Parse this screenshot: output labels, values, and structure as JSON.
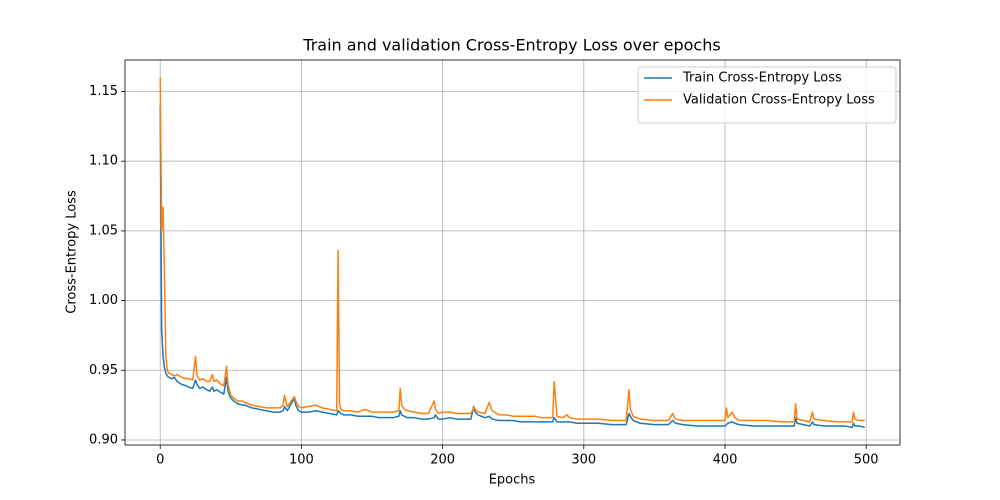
{
  "chart_data": {
    "type": "line",
    "title": "Train and validation Cross-Entropy Loss over epochs",
    "xlabel": "Epochs",
    "ylabel": "Cross-Entropy Loss",
    "x": [
      0,
      1,
      2,
      3,
      4,
      5,
      6,
      8,
      10,
      12,
      15,
      18,
      20,
      23,
      25,
      26,
      28,
      30,
      33,
      35,
      37,
      38,
      40,
      43,
      45,
      47,
      48,
      50,
      52,
      55,
      58,
      60,
      65,
      70,
      75,
      80,
      85,
      87,
      88,
      90,
      95,
      96,
      98,
      100,
      105,
      110,
      115,
      120,
      125,
      126,
      127,
      128,
      130,
      135,
      140,
      145,
      150,
      155,
      160,
      165,
      169,
      170,
      171,
      173,
      175,
      180,
      185,
      190,
      194,
      195,
      197,
      200,
      205,
      210,
      215,
      220,
      222,
      223,
      225,
      230,
      233,
      235,
      240,
      245,
      250,
      255,
      260,
      265,
      270,
      275,
      278,
      279,
      281,
      285,
      288,
      290,
      295,
      300,
      310,
      320,
      330,
      332,
      333,
      335,
      340,
      350,
      360,
      363,
      365,
      370,
      380,
      390,
      400,
      401,
      402,
      405,
      407,
      410,
      420,
      430,
      440,
      449,
      450,
      451,
      460,
      462,
      463,
      470,
      480,
      485,
      490,
      491,
      492,
      495,
      499
    ],
    "series": [
      {
        "name": "Train Cross-Entropy Loss",
        "color": "#1f77b4",
        "values": [
          1.14,
          0.98,
          0.96,
          0.952,
          0.948,
          0.946,
          0.945,
          0.944,
          0.945,
          0.942,
          0.94,
          0.939,
          0.938,
          0.937,
          0.943,
          0.94,
          0.937,
          0.938,
          0.936,
          0.935,
          0.938,
          0.935,
          0.936,
          0.934,
          0.933,
          0.945,
          0.935,
          0.93,
          0.928,
          0.926,
          0.925,
          0.925,
          0.923,
          0.922,
          0.921,
          0.92,
          0.92,
          0.921,
          0.924,
          0.921,
          0.93,
          0.925,
          0.921,
          0.92,
          0.92,
          0.921,
          0.92,
          0.919,
          0.918,
          0.921,
          0.92,
          0.919,
          0.918,
          0.918,
          0.917,
          0.917,
          0.917,
          0.916,
          0.916,
          0.916,
          0.917,
          0.921,
          0.918,
          0.917,
          0.916,
          0.916,
          0.915,
          0.915,
          0.916,
          0.918,
          0.915,
          0.915,
          0.916,
          0.915,
          0.915,
          0.915,
          0.924,
          0.92,
          0.918,
          0.916,
          0.917,
          0.915,
          0.914,
          0.914,
          0.914,
          0.913,
          0.913,
          0.913,
          0.913,
          0.913,
          0.913,
          0.916,
          0.913,
          0.913,
          0.913,
          0.913,
          0.912,
          0.912,
          0.912,
          0.911,
          0.911,
          0.919,
          0.917,
          0.914,
          0.912,
          0.911,
          0.911,
          0.914,
          0.912,
          0.911,
          0.91,
          0.91,
          0.91,
          0.911,
          0.912,
          0.913,
          0.912,
          0.911,
          0.91,
          0.91,
          0.91,
          0.91,
          0.916,
          0.912,
          0.91,
          0.913,
          0.911,
          0.91,
          0.91,
          0.91,
          0.909,
          0.912,
          0.91,
          0.91,
          0.909
        ]
      },
      {
        "name": "Validation Cross-Entropy Loss",
        "color": "#ff7f0e",
        "values": [
          1.16,
          1.05,
          1.067,
          1.02,
          0.96,
          0.95,
          0.948,
          0.947,
          0.946,
          0.947,
          0.945,
          0.944,
          0.944,
          0.943,
          0.96,
          0.946,
          0.943,
          0.944,
          0.942,
          0.942,
          0.947,
          0.942,
          0.943,
          0.94,
          0.939,
          0.953,
          0.94,
          0.932,
          0.93,
          0.928,
          0.928,
          0.927,
          0.925,
          0.924,
          0.923,
          0.923,
          0.923,
          0.925,
          0.932,
          0.924,
          0.931,
          0.928,
          0.924,
          0.923,
          0.924,
          0.925,
          0.923,
          0.922,
          0.921,
          1.036,
          0.926,
          0.922,
          0.921,
          0.921,
          0.92,
          0.922,
          0.92,
          0.92,
          0.92,
          0.92,
          0.921,
          0.937,
          0.925,
          0.922,
          0.921,
          0.92,
          0.919,
          0.919,
          0.928,
          0.922,
          0.919,
          0.92,
          0.92,
          0.919,
          0.919,
          0.919,
          0.923,
          0.922,
          0.92,
          0.919,
          0.927,
          0.921,
          0.918,
          0.918,
          0.917,
          0.917,
          0.917,
          0.917,
          0.916,
          0.916,
          0.916,
          0.942,
          0.917,
          0.916,
          0.918,
          0.916,
          0.915,
          0.915,
          0.915,
          0.914,
          0.914,
          0.936,
          0.922,
          0.917,
          0.915,
          0.914,
          0.914,
          0.919,
          0.915,
          0.914,
          0.914,
          0.914,
          0.914,
          0.923,
          0.916,
          0.92,
          0.916,
          0.914,
          0.914,
          0.914,
          0.913,
          0.913,
          0.926,
          0.915,
          0.913,
          0.92,
          0.915,
          0.914,
          0.913,
          0.913,
          0.913,
          0.92,
          0.915,
          0.914,
          0.914
        ]
      }
    ],
    "xlim": [
      -24.95,
      523.95
    ],
    "xticks": [
      0,
      100,
      200,
      300,
      400,
      500
    ],
    "ylim": [
      0.8964,
      1.1726
    ],
    "yticks": [
      {
        "value": 0.9,
        "label": "0.90"
      },
      0.95,
      {
        "value": 1.0,
        "label": "1.00"
      },
      1.05,
      {
        "value": 1.1,
        "label": "1.10"
      },
      1.15
    ],
    "grid": true,
    "legend": "upper right"
  }
}
